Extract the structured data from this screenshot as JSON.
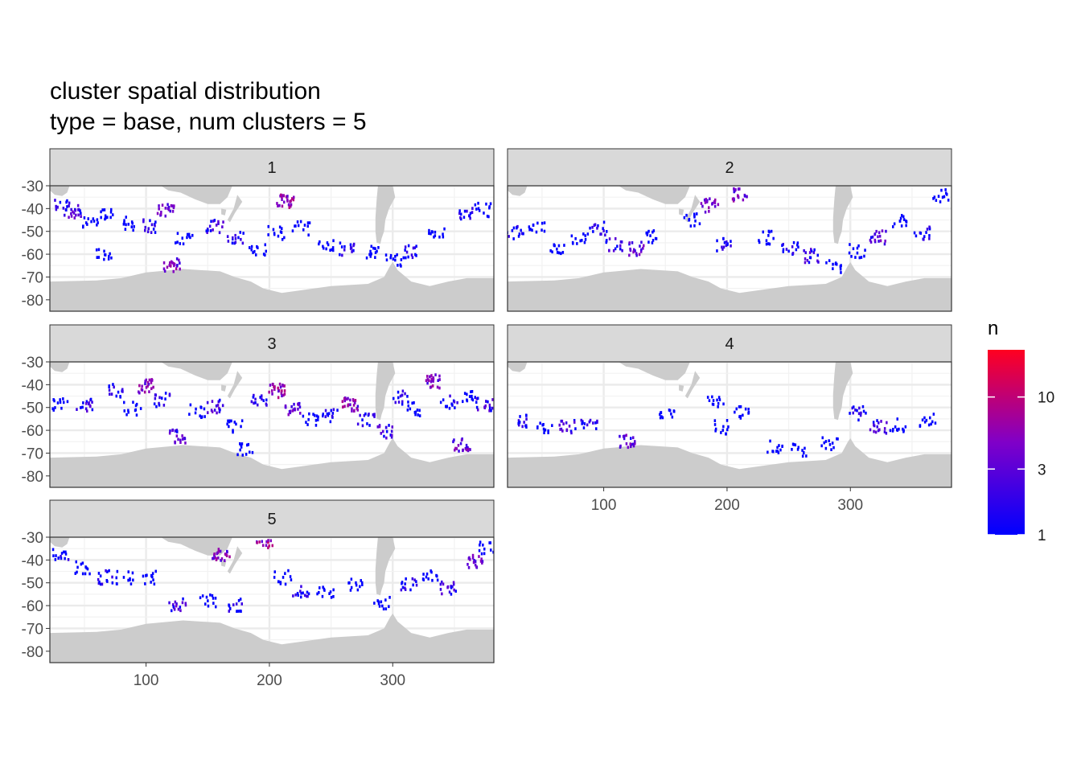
{
  "chart_data": {
    "type": "heatmap",
    "title_lines": [
      "cluster spatial distribution",
      "type = base, num clusters = 5"
    ],
    "xlabel": "",
    "ylabel": "",
    "x_range": [
      22,
      382
    ],
    "y_range": [
      -85,
      -30
    ],
    "x_ticks": [
      100,
      200,
      300
    ],
    "y_ticks": [
      -30,
      -40,
      -50,
      -60,
      -70,
      -80
    ],
    "x_tick_labels": [
      "100",
      "200",
      "300"
    ],
    "y_tick_labels": [
      "-30",
      "-40",
      "-50",
      "-60",
      "-70",
      "-80"
    ],
    "colors": {
      "land": "#cccccc",
      "grid_minor": "#f2f2f2",
      "grid_major": "#ebebeb",
      "strip": "#d9d9d9",
      "panel_border": "#333333",
      "low": "#0000ff",
      "mid": "#8000c8",
      "high": "#ff0020"
    },
    "legend": {
      "title": "n",
      "position": "right",
      "scale": "log",
      "breaks": [
        1,
        3,
        10
      ],
      "break_labels": [
        "1",
        "3",
        "10"
      ],
      "range": [
        1,
        22
      ]
    },
    "panels": [
      {
        "label": "1",
        "tracks": [
          {
            "lon": 30,
            "lat": -38,
            "n": 2
          },
          {
            "lon": 40,
            "lat": -41,
            "n": 4
          },
          {
            "lon": 55,
            "lat": -46,
            "n": 1
          },
          {
            "lon": 68,
            "lat": -41,
            "n": 1
          },
          {
            "lon": 85,
            "lat": -46,
            "n": 1
          },
          {
            "lon": 100,
            "lat": -47,
            "n": 2
          },
          {
            "lon": 115,
            "lat": -40,
            "n": 5
          },
          {
            "lon": 130,
            "lat": -52,
            "n": 1
          },
          {
            "lon": 155,
            "lat": -47,
            "n": 3
          },
          {
            "lon": 172,
            "lat": -52,
            "n": 2
          },
          {
            "lon": 190,
            "lat": -58,
            "n": 1
          },
          {
            "lon": 205,
            "lat": -50,
            "n": 1
          },
          {
            "lon": 212,
            "lat": -36,
            "n": 8
          },
          {
            "lon": 225,
            "lat": -48,
            "n": 1
          },
          {
            "lon": 245,
            "lat": -55,
            "n": 1
          },
          {
            "lon": 262,
            "lat": -57,
            "n": 2
          },
          {
            "lon": 285,
            "lat": -58,
            "n": 1
          },
          {
            "lon": 300,
            "lat": -62,
            "n": 1
          },
          {
            "lon": 315,
            "lat": -58,
            "n": 2
          },
          {
            "lon": 335,
            "lat": -50,
            "n": 1
          },
          {
            "lon": 360,
            "lat": -42,
            "n": 2
          },
          {
            "lon": 372,
            "lat": -40,
            "n": 1
          },
          {
            "lon": 120,
            "lat": -64,
            "n": 6
          },
          {
            "lon": 65,
            "lat": -60,
            "n": 1
          }
        ]
      },
      {
        "label": "2",
        "tracks": [
          {
            "lon": 28,
            "lat": -50,
            "n": 2
          },
          {
            "lon": 45,
            "lat": -48,
            "n": 1
          },
          {
            "lon": 62,
            "lat": -58,
            "n": 1
          },
          {
            "lon": 80,
            "lat": -52,
            "n": 1
          },
          {
            "lon": 95,
            "lat": -48,
            "n": 2
          },
          {
            "lon": 108,
            "lat": -55,
            "n": 3
          },
          {
            "lon": 125,
            "lat": -57,
            "n": 4
          },
          {
            "lon": 140,
            "lat": -52,
            "n": 1
          },
          {
            "lon": 170,
            "lat": -44,
            "n": 1
          },
          {
            "lon": 185,
            "lat": -38,
            "n": 5
          },
          {
            "lon": 198,
            "lat": -55,
            "n": 2
          },
          {
            "lon": 210,
            "lat": -33,
            "n": 6
          },
          {
            "lon": 230,
            "lat": -52,
            "n": 1
          },
          {
            "lon": 250,
            "lat": -57,
            "n": 2
          },
          {
            "lon": 268,
            "lat": -60,
            "n": 3
          },
          {
            "lon": 285,
            "lat": -65,
            "n": 1
          },
          {
            "lon": 305,
            "lat": -58,
            "n": 1
          },
          {
            "lon": 322,
            "lat": -52,
            "n": 4
          },
          {
            "lon": 340,
            "lat": -45,
            "n": 1
          },
          {
            "lon": 358,
            "lat": -50,
            "n": 2
          },
          {
            "lon": 372,
            "lat": -34,
            "n": 1
          }
        ]
      },
      {
        "label": "3",
        "tracks": [
          {
            "lon": 30,
            "lat": -48,
            "n": 1
          },
          {
            "lon": 50,
            "lat": -48,
            "n": 3
          },
          {
            "lon": 75,
            "lat": -42,
            "n": 2
          },
          {
            "lon": 88,
            "lat": -50,
            "n": 1
          },
          {
            "lon": 100,
            "lat": -40,
            "n": 6
          },
          {
            "lon": 112,
            "lat": -46,
            "n": 2
          },
          {
            "lon": 125,
            "lat": -62,
            "n": 4
          },
          {
            "lon": 140,
            "lat": -51,
            "n": 1
          },
          {
            "lon": 155,
            "lat": -49,
            "n": 3
          },
          {
            "lon": 172,
            "lat": -58,
            "n": 1
          },
          {
            "lon": 190,
            "lat": -46,
            "n": 2
          },
          {
            "lon": 205,
            "lat": -42,
            "n": 8
          },
          {
            "lon": 218,
            "lat": -50,
            "n": 5
          },
          {
            "lon": 232,
            "lat": -55,
            "n": 1
          },
          {
            "lon": 248,
            "lat": -53,
            "n": 2
          },
          {
            "lon": 265,
            "lat": -48,
            "n": 7
          },
          {
            "lon": 278,
            "lat": -55,
            "n": 2
          },
          {
            "lon": 292,
            "lat": -60,
            "n": 3
          },
          {
            "lon": 305,
            "lat": -45,
            "n": 2
          },
          {
            "lon": 318,
            "lat": -50,
            "n": 1
          },
          {
            "lon": 332,
            "lat": -38,
            "n": 6
          },
          {
            "lon": 345,
            "lat": -47,
            "n": 2
          },
          {
            "lon": 360,
            "lat": -45,
            "n": 1
          },
          {
            "lon": 374,
            "lat": -48,
            "n": 3
          },
          {
            "lon": 355,
            "lat": -66,
            "n": 5
          },
          {
            "lon": 180,
            "lat": -68,
            "n": 1
          }
        ]
      },
      {
        "label": "4",
        "tracks": [
          {
            "lon": 35,
            "lat": -55,
            "n": 2
          },
          {
            "lon": 52,
            "lat": -59,
            "n": 1
          },
          {
            "lon": 70,
            "lat": -58,
            "n": 3
          },
          {
            "lon": 88,
            "lat": -56,
            "n": 2
          },
          {
            "lon": 118,
            "lat": -64,
            "n": 4
          },
          {
            "lon": 150,
            "lat": -52,
            "n": 1
          },
          {
            "lon": 195,
            "lat": -58,
            "n": 1
          },
          {
            "lon": 210,
            "lat": -52,
            "n": 1
          },
          {
            "lon": 238,
            "lat": -67,
            "n": 1
          },
          {
            "lon": 258,
            "lat": -68,
            "n": 1
          },
          {
            "lon": 282,
            "lat": -65,
            "n": 1
          },
          {
            "lon": 305,
            "lat": -52,
            "n": 2
          },
          {
            "lon": 322,
            "lat": -58,
            "n": 3
          },
          {
            "lon": 338,
            "lat": -57,
            "n": 1
          },
          {
            "lon": 362,
            "lat": -55,
            "n": 1
          },
          {
            "lon": 190,
            "lat": -47,
            "n": 1
          }
        ]
      },
      {
        "label": "5",
        "tracks": [
          {
            "lon": 30,
            "lat": -37,
            "n": 2
          },
          {
            "lon": 48,
            "lat": -43,
            "n": 1
          },
          {
            "lon": 65,
            "lat": -47,
            "n": 2
          },
          {
            "lon": 82,
            "lat": -47,
            "n": 1
          },
          {
            "lon": 102,
            "lat": -47,
            "n": 1
          },
          {
            "lon": 125,
            "lat": -59,
            "n": 3
          },
          {
            "lon": 150,
            "lat": -57,
            "n": 1
          },
          {
            "lon": 170,
            "lat": -59,
            "n": 2
          },
          {
            "lon": 160,
            "lat": -37,
            "n": 6
          },
          {
            "lon": 195,
            "lat": -31,
            "n": 10
          },
          {
            "lon": 210,
            "lat": -47,
            "n": 1
          },
          {
            "lon": 225,
            "lat": -53,
            "n": 2
          },
          {
            "lon": 245,
            "lat": -54,
            "n": 1
          },
          {
            "lon": 270,
            "lat": -50,
            "n": 1
          },
          {
            "lon": 290,
            "lat": -58,
            "n": 1
          },
          {
            "lon": 312,
            "lat": -50,
            "n": 2
          },
          {
            "lon": 330,
            "lat": -47,
            "n": 1
          },
          {
            "lon": 345,
            "lat": -52,
            "n": 3
          },
          {
            "lon": 366,
            "lat": -40,
            "n": 4
          },
          {
            "lon": 376,
            "lat": -34,
            "n": 1
          }
        ]
      }
    ]
  }
}
